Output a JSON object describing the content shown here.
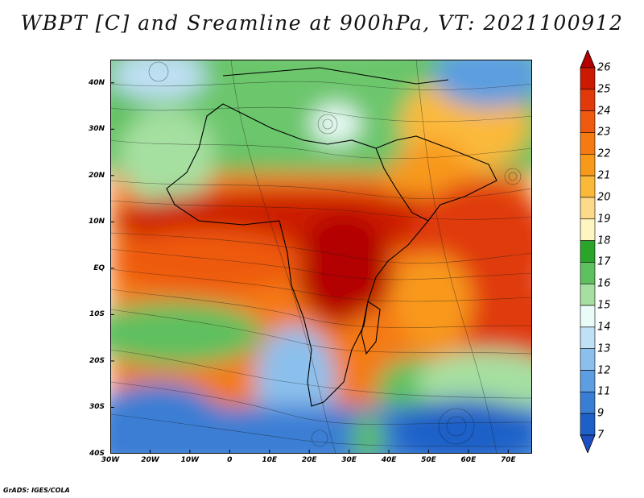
{
  "title": "WBPT [C] and Sreamline at 900hPa, VT: 2021100912",
  "credit": "GrADS: IGES/COLA",
  "map": {
    "lon_range": [
      -30,
      76
    ],
    "lat_range": [
      -40,
      45
    ],
    "lat_labels": [
      "40N",
      "30N",
      "20N",
      "10N",
      "EQ",
      "10S",
      "20S",
      "30S",
      "40S"
    ],
    "lat_values": [
      40,
      30,
      20,
      10,
      0,
      -10,
      -20,
      -30,
      -40
    ],
    "lon_labels": [
      "30W",
      "20W",
      "10W",
      "0",
      "10E",
      "20E",
      "30E",
      "40E",
      "50E",
      "60E",
      "70E"
    ],
    "lon_values": [
      -30,
      -20,
      -10,
      0,
      10,
      20,
      30,
      40,
      50,
      60,
      70
    ]
  },
  "colorbar": {
    "labels": [
      "26",
      "25",
      "24",
      "23",
      "22",
      "21",
      "20",
      "19",
      "18",
      "17",
      "16",
      "15",
      "14",
      "13",
      "12",
      "11",
      "9",
      "7"
    ],
    "colors": [
      "#b30000",
      "#cc1a00",
      "#e03a0a",
      "#ee5a10",
      "#f57a12",
      "#f8991a",
      "#fbb93a",
      "#fdd98a",
      "#fef6c0",
      "#2aa52a",
      "#5fc05f",
      "#a6e0a0",
      "#eafbf8",
      "#bfe0f5",
      "#8cc0ec",
      "#5c9ee0",
      "#3a7ed4",
      "#1f60c8",
      "#1c50c0"
    ],
    "max_label": "26",
    "min_label": "7"
  }
}
